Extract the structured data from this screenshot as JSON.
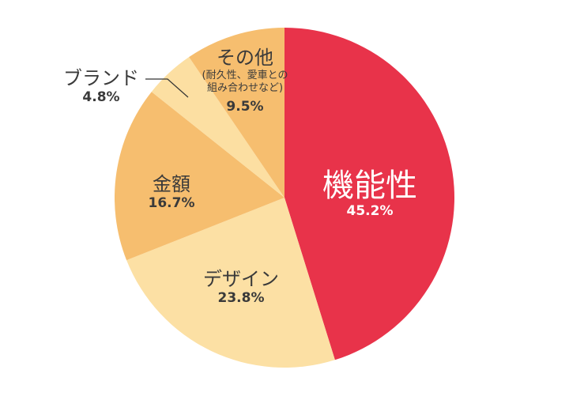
{
  "chart_data": {
    "type": "pie",
    "start": "top",
    "direction": "clockwise",
    "slices": [
      {
        "label": "機能性",
        "value": 45.2,
        "value_label": "45.2%",
        "color": "#E8334A"
      },
      {
        "label": "デザイン",
        "value": 23.8,
        "value_label": "23.8%",
        "color": "#FCE0A4"
      },
      {
        "label": "金額",
        "value": 16.7,
        "value_label": "16.7%",
        "color": "#F6BE6F"
      },
      {
        "label": "ブランド",
        "value": 4.8,
        "value_label": "4.8%",
        "color": "#FCDFA2"
      },
      {
        "label": "その他",
        "note": "(耐久性、愛車との\n組み合わせなど)",
        "value": 9.5,
        "value_label": "9.5%",
        "color": "#F6BE6F"
      }
    ]
  }
}
